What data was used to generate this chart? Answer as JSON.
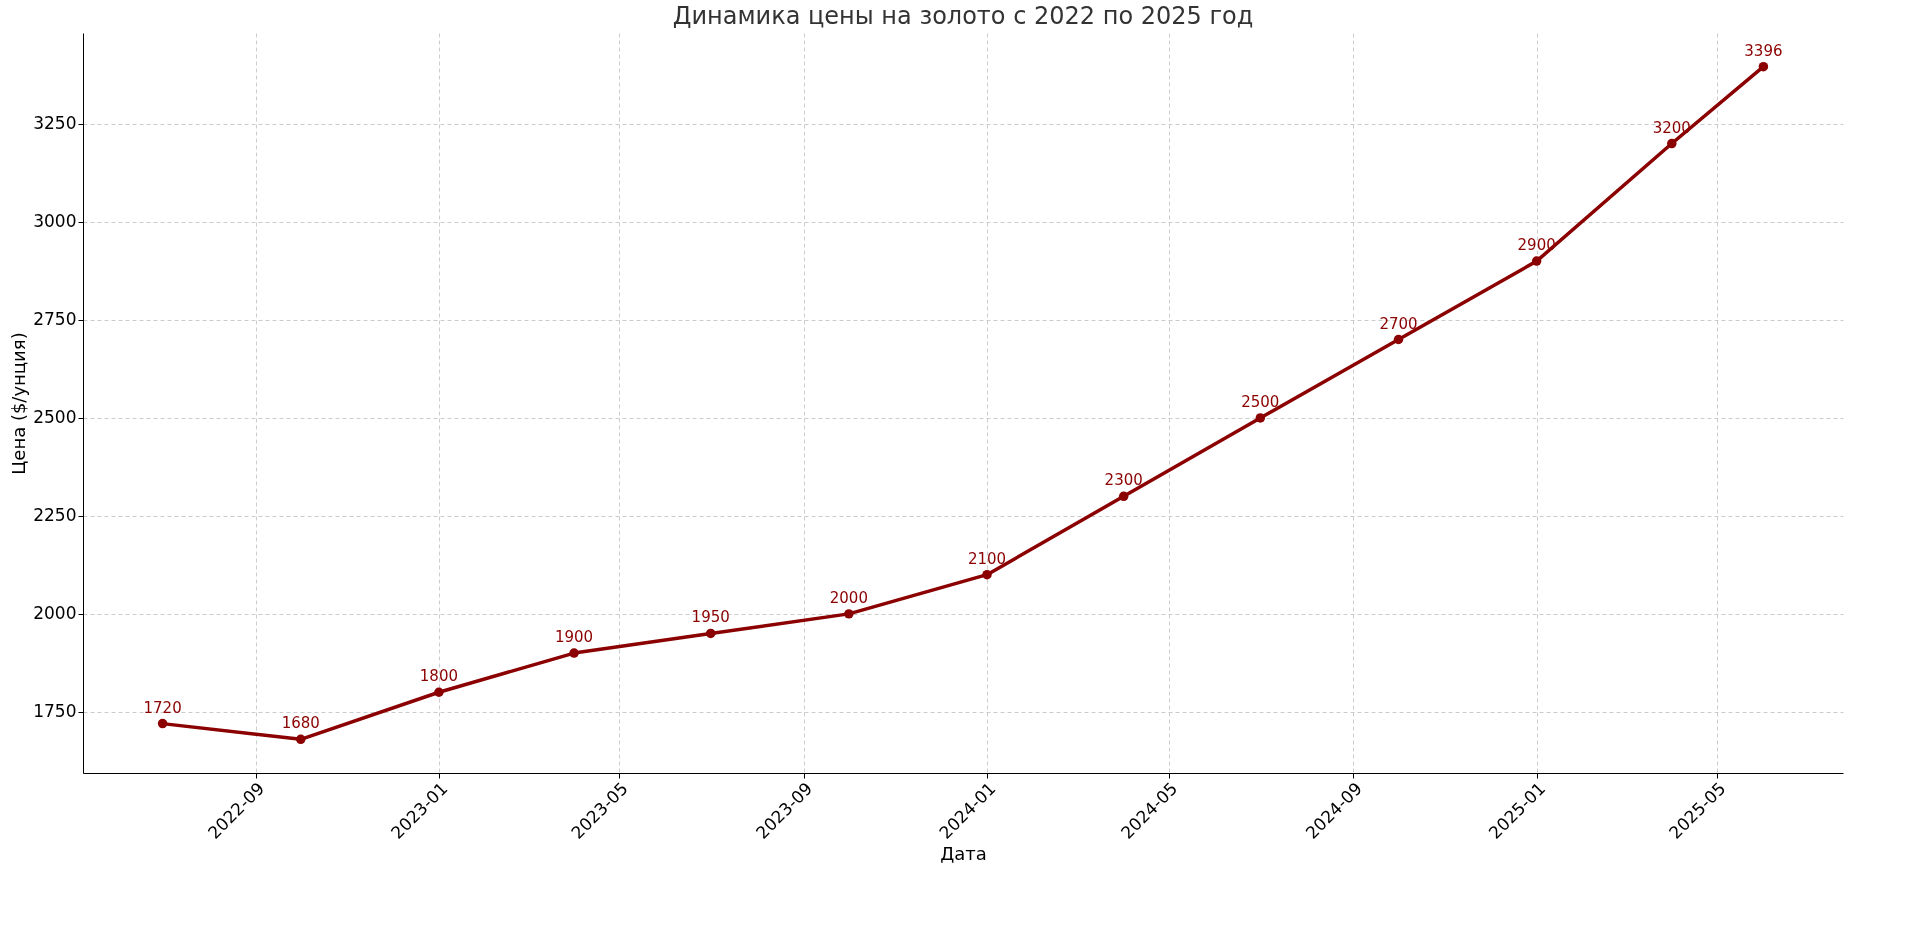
{
  "chart_data": {
    "type": "line",
    "title": "Динамика цены на золото с 2022 по 2025 год",
    "xlabel": "Дата",
    "ylabel": "Цена ($/унция)",
    "x": [
      "2022-07-01",
      "2022-10-01",
      "2023-01-01",
      "2023-04-01",
      "2023-07-01",
      "2023-10-01",
      "2024-01-01",
      "2024-04-01",
      "2024-07-01",
      "2024-10-01",
      "2025-01-01",
      "2025-04-01",
      "2025-06-01"
    ],
    "series": [
      {
        "color": "#8b0000",
        "values": [
          1720,
          1680,
          1800,
          1900,
          1950,
          2000,
          2100,
          2300,
          2500,
          2700,
          2900,
          3200,
          3396
        ]
      }
    ],
    "xlim": [
      "2022-05-09",
      "2025-07-24"
    ],
    "xticks": [
      "2022-09",
      "2023-01",
      "2023-05",
      "2023-09",
      "2024-01",
      "2024-05",
      "2024-09",
      "2025-01",
      "2025-05"
    ],
    "ylim": [
      1594,
      3482
    ],
    "yticks": [
      1750,
      2000,
      2250,
      2500,
      2750,
      3000,
      3250
    ],
    "grid": true,
    "marker": "circle",
    "line_style": "solid",
    "data_labels": true
  }
}
